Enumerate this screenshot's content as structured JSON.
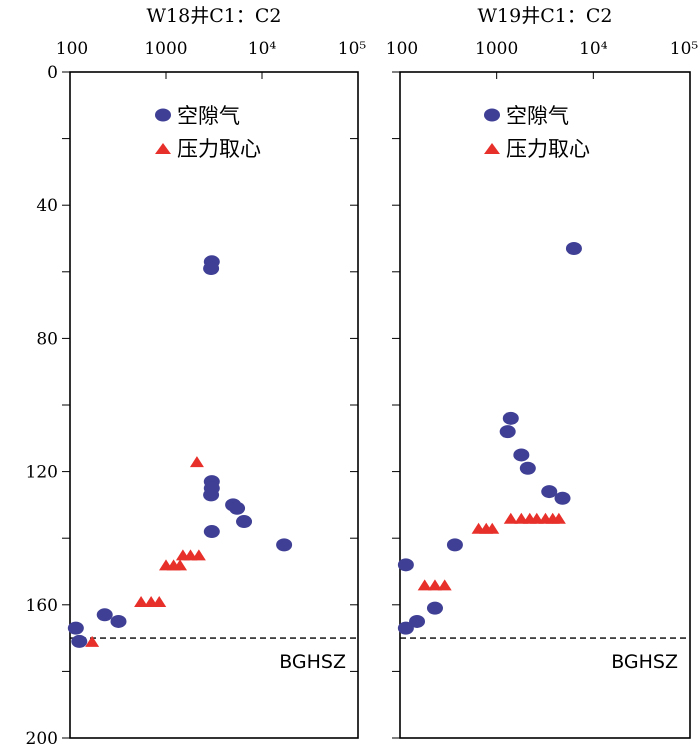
{
  "chart_data": [
    {
      "type": "scatter",
      "title": "W18井C1：C2",
      "x_scale": "log",
      "xlim": [
        100,
        100000
      ],
      "x_tick_labels": [
        "100",
        "1000",
        "10⁴",
        "10⁵"
      ],
      "ylim": [
        0,
        200
      ],
      "y_inverted": true,
      "y_tick_labels": [
        "0",
        "40",
        "80",
        "120",
        "160",
        "200"
      ],
      "legend_position": "top-center",
      "reference_line": {
        "y": 170,
        "label": "BGHSZ",
        "style": "dashed"
      },
      "series": [
        {
          "name": "空隙气",
          "marker": "circle",
          "color": "#3f3f95",
          "points": [
            [
              3000,
              57
            ],
            [
              2950,
              59
            ],
            [
              3000,
              123
            ],
            [
              3000,
              125
            ],
            [
              2950,
              127
            ],
            [
              5000,
              130
            ],
            [
              5500,
              131
            ],
            [
              6500,
              135
            ],
            [
              3000,
              138
            ],
            [
              17000,
              142
            ],
            [
              115,
              167
            ],
            [
              125,
              171
            ],
            [
              230,
              163
            ],
            [
              320,
              165
            ]
          ]
        },
        {
          "name": "压力取心",
          "marker": "triangle",
          "color": "#e8302b",
          "points": [
            [
              2100,
              117
            ],
            [
              1500,
              145
            ],
            [
              1800,
              145
            ],
            [
              2200,
              145
            ],
            [
              1000,
              148
            ],
            [
              1200,
              148
            ],
            [
              1400,
              148
            ],
            [
              550,
              159
            ],
            [
              700,
              159
            ],
            [
              850,
              159
            ],
            [
              170,
              171
            ]
          ]
        }
      ]
    },
    {
      "type": "scatter",
      "title": "W19井C1：C2",
      "x_scale": "log",
      "xlim": [
        100,
        100000
      ],
      "x_tick_labels": [
        "100",
        "1000",
        "10⁴",
        "10⁵"
      ],
      "ylim": [
        0,
        200
      ],
      "y_inverted": true,
      "legend_position": "top-center",
      "reference_line": {
        "y": 170,
        "label": "BGHSZ",
        "style": "dashed"
      },
      "series": [
        {
          "name": "空隙气",
          "marker": "circle",
          "color": "#3f3f95",
          "points": [
            [
              6300,
              53
            ],
            [
              1400,
              104
            ],
            [
              1300,
              108
            ],
            [
              1800,
              115
            ],
            [
              2100,
              119
            ],
            [
              3500,
              126
            ],
            [
              4800,
              128
            ],
            [
              370,
              142
            ],
            [
              115,
              148
            ],
            [
              115,
              167
            ],
            [
              150,
              165
            ],
            [
              230,
              161
            ]
          ]
        },
        {
          "name": "压力取心",
          "marker": "triangle",
          "color": "#e8302b",
          "points": [
            [
              180,
              154
            ],
            [
              230,
              154
            ],
            [
              290,
              154
            ],
            [
              650,
              137
            ],
            [
              780,
              137
            ],
            [
              900,
              137
            ],
            [
              1400,
              134
            ],
            [
              1800,
              134
            ],
            [
              2200,
              134
            ],
            [
              2600,
              134
            ],
            [
              3200,
              134
            ],
            [
              3800,
              134
            ],
            [
              4400,
              134
            ]
          ]
        }
      ]
    }
  ]
}
